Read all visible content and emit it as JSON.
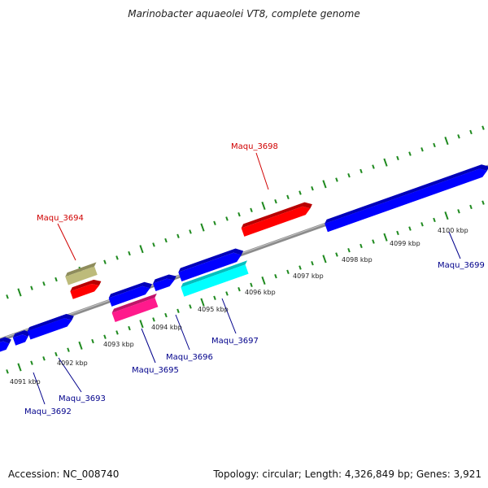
{
  "title": "Marinobacter aquaeolei VT8, complete genome",
  "footer": {
    "accession": "Accession: NC_008740",
    "topology": "Topology: circular; Length: 4,326,849 bp; Genes: 3,921"
  },
  "colors": {
    "backbone": "#8c8c8c",
    "tick": "#1f8a1f",
    "label_forward": "#d00000",
    "label_reverse": "#00008b"
  },
  "tick_labels": [
    "4091 kbp",
    "4092 kbp",
    "4093 kbp",
    "4094 kbp",
    "4095 kbp",
    "4096 kbp",
    "4097 kbp",
    "4098 kbp",
    "4099 kbp",
    "4100 kbp"
  ],
  "gene_labels": [
    {
      "text": "Maqu_3694",
      "strand": "forward"
    },
    {
      "text": "Maqu_3698",
      "strand": "forward"
    },
    {
      "text": "Maqu_3692",
      "strand": "reverse"
    },
    {
      "text": "Maqu_3693",
      "strand": "reverse"
    },
    {
      "text": "Maqu_3695",
      "strand": "reverse"
    },
    {
      "text": "Maqu_3696",
      "strand": "reverse"
    },
    {
      "text": "Maqu_3697",
      "strand": "reverse"
    },
    {
      "text": "Maqu_3699",
      "strand": "reverse"
    }
  ],
  "features": [
    {
      "strand": "forward",
      "color": "#bdbb7b"
    },
    {
      "strand": "forward",
      "color": "#ff0000"
    },
    {
      "strand": "forward",
      "color": "#ff0000"
    },
    {
      "strand": "reverse",
      "color": "#0000ff"
    },
    {
      "strand": "reverse",
      "color": "#0000ff"
    },
    {
      "strand": "reverse",
      "color": "#0000ff"
    },
    {
      "strand": "reverse",
      "color": "#0000ff"
    },
    {
      "strand": "reverse",
      "color": "#ff1a8c"
    },
    {
      "strand": "reverse",
      "color": "#0000ff"
    },
    {
      "strand": "reverse",
      "color": "#0000ff"
    },
    {
      "strand": "reverse",
      "color": "#00ffff"
    },
    {
      "strand": "reverse",
      "color": "#0000ff"
    }
  ]
}
